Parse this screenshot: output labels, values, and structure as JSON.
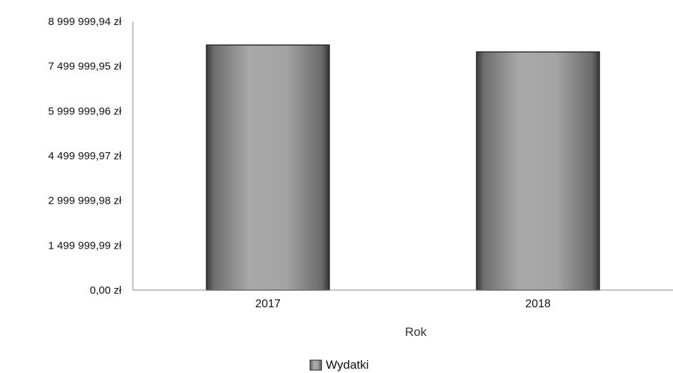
{
  "chart_data": {
    "type": "bar",
    "categories": [
      "2017",
      "2018"
    ],
    "series": [
      {
        "name": "Wydatki",
        "values": [
          8210000,
          7980000
        ]
      }
    ],
    "xlabel": "Rok",
    "ylabel": "",
    "ylim": [
      0,
      8999999.94
    ],
    "yticks": [
      {
        "value": 0,
        "label": "0,00 zł"
      },
      {
        "value": 1499999.99,
        "label": "1 499 999,99 zł"
      },
      {
        "value": 2999999.98,
        "label": "2 999 999,98 zł"
      },
      {
        "value": 4499999.97,
        "label": "4 499 999,97 zł"
      },
      {
        "value": 5999999.96,
        "label": "5 999 999,96 zł"
      },
      {
        "value": 7499999.95,
        "label": "7 499 999,95 zł"
      },
      {
        "value": 8999999.94,
        "label": "8 999 999,94 zł"
      }
    ],
    "grid": false,
    "legend_position": "bottom-center",
    "colors": {
      "bar": "#9a9a9a",
      "bar_edge": "#2a2a2a",
      "axis": "#888888"
    }
  }
}
